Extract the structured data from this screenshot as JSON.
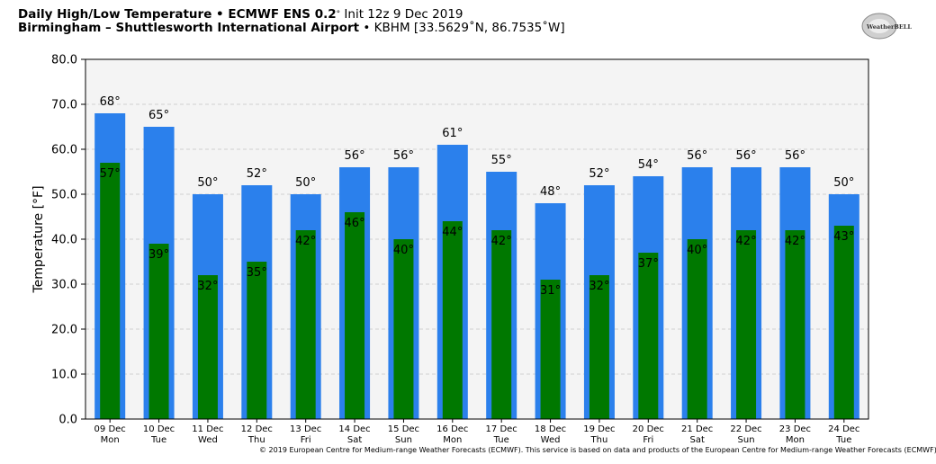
{
  "header": {
    "line1_bold": "Daily High/Low Temperature • ECMWF ENS 0.2",
    "line1_deg": "°",
    "line1_rest": " Init 12z 9 Dec 2019",
    "line2_bold": "Birmingham – Shuttlesworth International Airport",
    "line2_rest": " • KBHM [33.5629˚N, 86.7535˚W]"
  },
  "logo": {
    "text": "WeatherBELL",
    "icon": "weatherbell-logo"
  },
  "copyright": "© 2019 European Centre for Medium-range Weather Forecasts (ECMWF). This service is based on data and products of the European Centre for Medium-range Weather Forecasts (ECMWF)",
  "colors": {
    "high": "#2b80ec",
    "low": "#007800",
    "plot_bg": "#f4f4f4",
    "grid": "#d0d0d0"
  },
  "chart_data": {
    "type": "bar",
    "ylabel": "Temperature [°F]",
    "ylim": [
      0,
      80
    ],
    "yticks": [
      "0.0",
      "10.0",
      "20.0",
      "30.0",
      "40.0",
      "50.0",
      "60.0",
      "70.0",
      "80.0"
    ],
    "grid": true,
    "categories": [
      [
        "09 Dec",
        "Mon"
      ],
      [
        "10 Dec",
        "Tue"
      ],
      [
        "11 Dec",
        "Wed"
      ],
      [
        "12 Dec",
        "Thu"
      ],
      [
        "13 Dec",
        "Fri"
      ],
      [
        "14 Dec",
        "Sat"
      ],
      [
        "15 Dec",
        "Sun"
      ],
      [
        "16 Dec",
        "Mon"
      ],
      [
        "17 Dec",
        "Tue"
      ],
      [
        "18 Dec",
        "Wed"
      ],
      [
        "19 Dec",
        "Thu"
      ],
      [
        "20 Dec",
        "Fri"
      ],
      [
        "21 Dec",
        "Sat"
      ],
      [
        "22 Dec",
        "Sun"
      ],
      [
        "23 Dec",
        "Mon"
      ],
      [
        "24 Dec",
        "Tue"
      ]
    ],
    "series": [
      {
        "values": [
          68,
          65,
          50,
          52,
          50,
          56,
          56,
          61,
          55,
          48,
          52,
          54,
          56,
          56,
          56,
          50
        ]
      },
      {
        "values": [
          57,
          39,
          32,
          35,
          42,
          46,
          40,
          44,
          42,
          31,
          32,
          37,
          40,
          42,
          42,
          43
        ]
      }
    ],
    "label_suffix": "°"
  }
}
